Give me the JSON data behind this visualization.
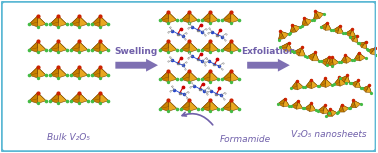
{
  "bg_color": "#ffffff",
  "border_color": "#5bb8d4",
  "arrow_color": "#7060aa",
  "text_color": "#7060aa",
  "gold1": "#c88000",
  "gold2": "#e8a820",
  "gold3": "#f0c050",
  "gold_edge": "#7a4800",
  "red_dot": "#cc2200",
  "green_dot": "#44bb44",
  "text_fontsize": 6.5,
  "label_bulk": "Bulk V₂O₅",
  "label_swelling": "Swelling",
  "label_exfoliation": "Exfoliation",
  "label_formamide": "Formamide",
  "label_nanosheets": "V₂O₅ nanosheets"
}
